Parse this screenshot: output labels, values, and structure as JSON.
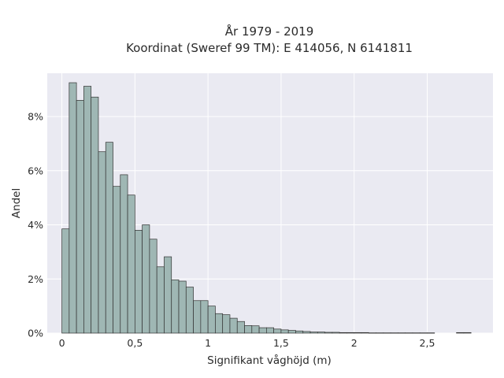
{
  "chart_data": {
    "type": "bar",
    "title_lines": [
      "År 1979 - 2019",
      "Koordinat (Sweref 99 TM): E 414056, N 6141811"
    ],
    "xlabel": "Signifikant våghöjd (m)",
    "ylabel": "Andel",
    "xlim": [
      -0.1,
      2.95
    ],
    "ylim": [
      0,
      9.6
    ],
    "x_ticks": [
      0,
      0.5,
      1,
      1.5,
      2,
      2.5
    ],
    "x_tick_labels": [
      "0",
      "0,5",
      "1",
      "1,5",
      "2",
      "2,5"
    ],
    "y_ticks": [
      0,
      2,
      4,
      6,
      8
    ],
    "y_tick_labels": [
      "0%",
      "2%",
      "4%",
      "6%",
      "8%"
    ],
    "grid": true,
    "bin_width": 0.05,
    "bin_starts": [
      0.0,
      0.05,
      0.1,
      0.15,
      0.2,
      0.25,
      0.3,
      0.35,
      0.4,
      0.45,
      0.5,
      0.55,
      0.6,
      0.65,
      0.7,
      0.75,
      0.8,
      0.85,
      0.9,
      0.95,
      1.0,
      1.05,
      1.1,
      1.15,
      1.2,
      1.25,
      1.3,
      1.35,
      1.4,
      1.45,
      1.5,
      1.55,
      1.6,
      1.65,
      1.7,
      1.75,
      1.8,
      1.85,
      1.9,
      1.95,
      2.0,
      2.05,
      2.1,
      2.15,
      2.2,
      2.25,
      2.3,
      2.35,
      2.4,
      2.45,
      2.5,
      2.55,
      2.6,
      2.65,
      2.7,
      2.75
    ],
    "values": [
      3.85,
      9.25,
      8.6,
      9.12,
      8.72,
      6.7,
      7.05,
      5.42,
      5.85,
      5.1,
      3.8,
      4.0,
      3.47,
      2.45,
      2.82,
      1.97,
      1.92,
      1.7,
      1.2,
      1.2,
      1.0,
      0.72,
      0.68,
      0.55,
      0.43,
      0.28,
      0.27,
      0.2,
      0.2,
      0.15,
      0.12,
      0.1,
      0.08,
      0.06,
      0.04,
      0.04,
      0.03,
      0.03,
      0.02,
      0.02,
      0.02,
      0.02,
      0.01,
      0.01,
      0.01,
      0.01,
      0.01,
      0.01,
      0.01,
      0.01,
      0.01,
      0.0,
      0.0,
      0.0,
      0.02,
      0.02
    ],
    "colors": {
      "bar_fill": "#9fb7b4",
      "bar_edge": "#333333",
      "plot_bg": "#eaeaf2",
      "grid": "#ffffff"
    }
  }
}
